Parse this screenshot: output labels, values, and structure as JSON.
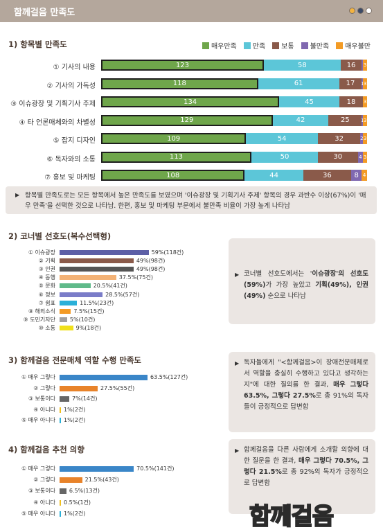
{
  "header": {
    "title": "함께걸음 만족도"
  },
  "colors": {
    "very_satisfied": "#6fa64b",
    "satisfied": "#5cc6d8",
    "normal": "#8a5a4a",
    "dissatisfied": "#8068b0",
    "very_dissatisfied": "#f39b25"
  },
  "chart_data": [
    {
      "type": "bar",
      "title": "1) 항목별 만족도",
      "stacked": true,
      "legend_placement": "top-right",
      "categories": [
        "① 기사의 내용",
        "② 기사의 가독성",
        "③ 이슈광장 및 기획기사 주제",
        "④ 타 언론매체와의 차별성",
        "⑤ 잡지 디자인",
        "⑥ 독자와의 소통",
        "⑦ 홍보 및 마케팅"
      ],
      "series": [
        {
          "name": "매우만족",
          "values": [
            123,
            118,
            134,
            129,
            109,
            113,
            108
          ]
        },
        {
          "name": "만족",
          "values": [
            58,
            61,
            45,
            42,
            54,
            50,
            44
          ]
        },
        {
          "name": "보통",
          "values": [
            16,
            17,
            18,
            25,
            32,
            30,
            36
          ]
        },
        {
          "name": "불만족",
          "values": [
            1,
            1,
            0,
            1,
            2,
            4,
            8
          ]
        },
        {
          "name": "매우불만",
          "values": [
            3,
            3,
            3,
            3,
            3,
            3,
            4
          ]
        }
      ],
      "segment_labels": [
        [
          "123",
          "58",
          "16",
          "",
          "3"
        ],
        [
          "118",
          "61",
          "17",
          "1",
          "3"
        ],
        [
          "134",
          "45",
          "18",
          "",
          "3"
        ],
        [
          "129",
          "42",
          "25",
          "1",
          "3"
        ],
        [
          "109",
          "54",
          "32",
          "2",
          "3"
        ],
        [
          "113",
          "50",
          "30",
          "4",
          "3"
        ],
        [
          "108",
          "44",
          "36",
          "8",
          "4"
        ]
      ]
    },
    {
      "type": "bar",
      "title": "2) 코너별 선호도(복수선택형)",
      "categories": [
        "① 이슈광장",
        "② 기획",
        "③ 인권",
        "④ 동행",
        "⑤ 문화",
        "⑥ 정보",
        "⑦ 쉼표",
        "⑧ 해외소식",
        "⑨ 도민기자단",
        "⑩ 소통"
      ],
      "values": [
        59,
        49,
        49,
        37.5,
        20.5,
        28.5,
        11.5,
        7.5,
        5,
        9
      ],
      "labels": [
        "59%(118건)",
        "49%(98건)",
        "49%(98건)",
        "37.5%(75건)",
        "20.5%(41건)",
        "28.5%(57건)",
        "11.5%(23건)",
        "7.5%(15건)",
        "5%(10건)",
        "9%(18건)"
      ],
      "colors": [
        "#5d5fa6",
        "#8a5a4a",
        "#555555",
        "#f3b276",
        "#5fba8a",
        "#7a7cc8",
        "#2bb0d8",
        "#f39b25",
        "#a0a0a0",
        "#f0e01a"
      ]
    },
    {
      "type": "bar",
      "title": "3) 함께걸음 전문매체 역할 수행 만족도",
      "categories": [
        "① 매우 그렇다",
        "② 그렇다",
        "③ 보통이다",
        "④ 아니다",
        "⑤ 매우 아니다"
      ],
      "values": [
        63.5,
        27.5,
        7,
        1,
        1
      ],
      "labels": [
        "63.5%(127건)",
        "27.5%(55건)",
        "7%(14건)",
        "1%(2건)",
        "1%(2건)"
      ],
      "colors": [
        "#3a86c8",
        "#e8832a",
        "#666666",
        "#f0c020",
        "#2bb0d8"
      ]
    },
    {
      "type": "bar",
      "title": "4) 함께걸음 추천 의향",
      "categories": [
        "① 매우 그렇다",
        "② 그렇다",
        "③ 보통이다",
        "④ 아니다",
        "⑤ 매우 아니다"
      ],
      "values": [
        70.5,
        21.5,
        6.5,
        0.5,
        1
      ],
      "labels": [
        "70.5%(141건)",
        "21.5%(43건)",
        "6.5%(13건)",
        "0.5%(1건)",
        "1%(2건)"
      ],
      "colors": [
        "#3a86c8",
        "#e8832a",
        "#666666",
        "#f0c020",
        "#2bb0d8"
      ]
    }
  ],
  "notes": {
    "n1": "항목별 만족도로는 모든 항목에서 높은 만족도를 보였으며 '이슈광장 및 기획기사 주제' 항목의 경우 과반수 이상(67%)이 '매우 만족'을 선택한 것으로 나타남. 한편, 홍보 및 마케팅 부문에서 불만족 비율이 가장 높게 나타남",
    "n2": {
      "t1": "코너별 선호도에서는 '",
      "b1": "이슈광장'의 선호도(59%)",
      "t2": "가 가장 높았고 ",
      "b2": "기획(49%), 인권(49%)",
      "t3": " 순으로 나타남"
    },
    "n3": {
      "t1": "독자들에게 \"<함께걸음>이 장애전문매체로서 역할을 충실히 수행하고 있다고 생각하는지\"에 대한 질의를 한 결과, ",
      "b1": "매우 그렇다 63.5%, 그렇다 27.5%",
      "t2": "로 총 91%의 독자들이 긍정적으로 답변함"
    },
    "n4": {
      "t1": "함께걸음을 다른 사람에게 소개할 의향에 대한 질문을 한 결과, ",
      "b1": "매우 그렇다 70.5%, 그렇다 21.5%",
      "t2": "로 총 92%의 독자가 긍정적으로 답변함"
    }
  },
  "watermark": "함께걸음"
}
